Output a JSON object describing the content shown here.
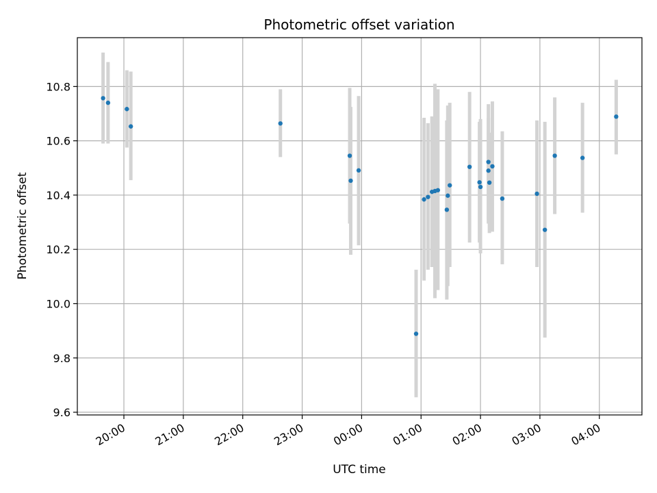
{
  "chart_data": {
    "type": "scatter",
    "title": "Photometric offset variation",
    "xlabel": "UTC time",
    "ylabel": "Photometric offset",
    "xlim": [
      "19:13",
      "04:43"
    ],
    "ylim": [
      9.59,
      10.98
    ],
    "grid": true,
    "x_ticks": [
      "20:00",
      "21:00",
      "22:00",
      "23:00",
      "00:00",
      "01:00",
      "02:00",
      "03:00",
      "04:00"
    ],
    "y_ticks": [
      "9.6",
      "9.8",
      "10.0",
      "10.2",
      "10.4",
      "10.6",
      "10.8"
    ],
    "points_color": "#1f77b4",
    "errorbar_color": "#d3d3d3",
    "points": [
      {
        "t": "19:39",
        "y": 10.757,
        "lo": 10.59,
        "hi": 10.925
      },
      {
        "t": "19:44",
        "y": 10.74,
        "lo": 10.59,
        "hi": 10.89
      },
      {
        "t": "20:03",
        "y": 10.717,
        "lo": 10.575,
        "hi": 10.86
      },
      {
        "t": "20:07",
        "y": 10.653,
        "lo": 10.455,
        "hi": 10.855
      },
      {
        "t": "22:38",
        "y": 10.664,
        "lo": 10.54,
        "hi": 10.79
      },
      {
        "t": "23:48",
        "y": 10.545,
        "lo": 10.295,
        "hi": 10.795
      },
      {
        "t": "23:49",
        "y": 10.453,
        "lo": 10.18,
        "hi": 10.725
      },
      {
        "t": "23:57",
        "y": 10.491,
        "lo": 10.215,
        "hi": 10.765
      },
      {
        "t": "00:55",
        "y": 9.889,
        "lo": 9.655,
        "hi": 10.125
      },
      {
        "t": "01:03",
        "y": 10.384,
        "lo": 10.085,
        "hi": 10.685
      },
      {
        "t": "01:07",
        "y": 10.393,
        "lo": 10.125,
        "hi": 10.665
      },
      {
        "t": "01:11",
        "y": 10.412,
        "lo": 10.135,
        "hi": 10.69
      },
      {
        "t": "01:14",
        "y": 10.415,
        "lo": 10.02,
        "hi": 10.81
      },
      {
        "t": "01:17",
        "y": 10.418,
        "lo": 10.05,
        "hi": 10.79
      },
      {
        "t": "01:26",
        "y": 10.346,
        "lo": 10.015,
        "hi": 10.675
      },
      {
        "t": "01:27",
        "y": 10.398,
        "lo": 10.065,
        "hi": 10.73
      },
      {
        "t": "01:29",
        "y": 10.436,
        "lo": 10.135,
        "hi": 10.74
      },
      {
        "t": "01:49",
        "y": 10.504,
        "lo": 10.225,
        "hi": 10.78
      },
      {
        "t": "01:59",
        "y": 10.447,
        "lo": 10.225,
        "hi": 10.67
      },
      {
        "t": "02:00",
        "y": 10.43,
        "lo": 10.185,
        "hi": 10.68
      },
      {
        "t": "02:08",
        "y": 10.522,
        "lo": 10.31,
        "hi": 10.735
      },
      {
        "t": "02:08",
        "y": 10.49,
        "lo": 10.295,
        "hi": 10.685
      },
      {
        "t": "02:09",
        "y": 10.446,
        "lo": 10.26,
        "hi": 10.63
      },
      {
        "t": "02:12",
        "y": 10.506,
        "lo": 10.265,
        "hi": 10.745
      },
      {
        "t": "02:22",
        "y": 10.387,
        "lo": 10.145,
        "hi": 10.635
      },
      {
        "t": "02:57",
        "y": 10.405,
        "lo": 10.135,
        "hi": 10.675
      },
      {
        "t": "03:05",
        "y": 10.272,
        "lo": 9.875,
        "hi": 10.67
      },
      {
        "t": "03:15",
        "y": 10.545,
        "lo": 10.33,
        "hi": 10.76
      },
      {
        "t": "03:43",
        "y": 10.537,
        "lo": 10.335,
        "hi": 10.74
      },
      {
        "t": "04:17",
        "y": 10.689,
        "lo": 10.55,
        "hi": 10.825
      }
    ]
  }
}
